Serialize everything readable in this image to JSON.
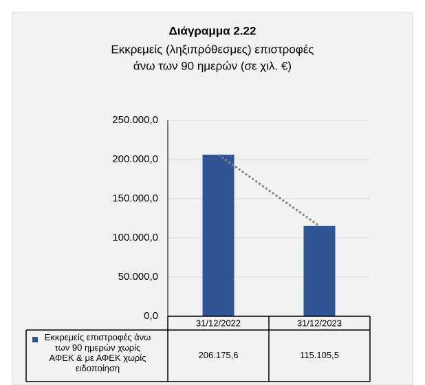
{
  "chart_data": {
    "type": "bar",
    "title": "Διάγραμμα 2.22",
    "subtitle": [
      "Εκκρεμείς (ληξιπρόθεσμες) επιστροφές",
      "άνω των 90 ημερών (σε χιλ. €)"
    ],
    "categories": [
      "31/12/2022",
      "31/12/2023"
    ],
    "series": [
      {
        "name": "Εκκρεμείς επιστροφές άνω των 90 ημερών χωρίς ΑΦΕΚ & με ΑΦΕΚ χωρίς ειδοποίηση",
        "color": "#2f5597",
        "values": [
          206175.6,
          115105.5
        ],
        "value_labels": [
          "206.175,6",
          "115.105,5"
        ]
      }
    ],
    "ylim": [
      0,
      250000
    ],
    "yticks": [
      {
        "value": 0,
        "label": "0,0"
      },
      {
        "value": 50000,
        "label": "50.000,0"
      },
      {
        "value": 100000,
        "label": "100.000,0"
      },
      {
        "value": 150000,
        "label": "150.000,0"
      },
      {
        "value": 200000,
        "label": "200.000,0"
      },
      {
        "value": 250000,
        "label": "250.000,0"
      }
    ],
    "grid": true,
    "trendline": true
  }
}
